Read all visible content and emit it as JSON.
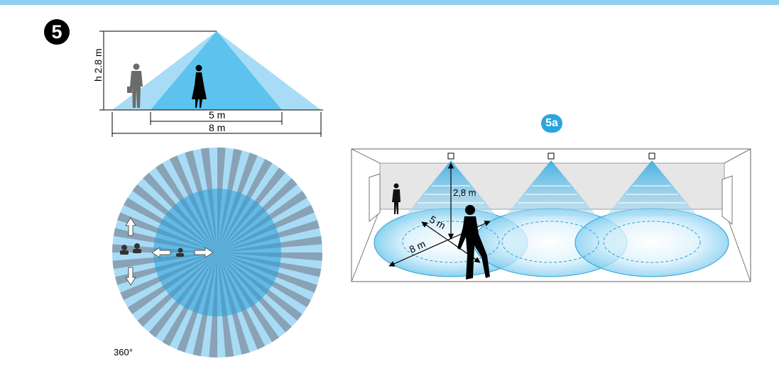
{
  "figure": {
    "number": "5",
    "subfigure_label": "5a",
    "side_view": {
      "height_label": "h 2.8 m",
      "inner_width_label": "5 m",
      "outer_width_label": "8 m"
    },
    "top_view": {
      "angle_label": "360°"
    },
    "room_view": {
      "height_label": "2,8 m",
      "inner_diameter_label": "5 m",
      "outer_diameter_label": "8 m",
      "sensor_count": 3
    }
  },
  "colors": {
    "light_blue": "#a8dcf6",
    "mid_blue": "#5cc2ee",
    "grey_segment": "#7f8f9f",
    "accent": "#2aa6df",
    "top_bar": "#8fd0ef"
  }
}
